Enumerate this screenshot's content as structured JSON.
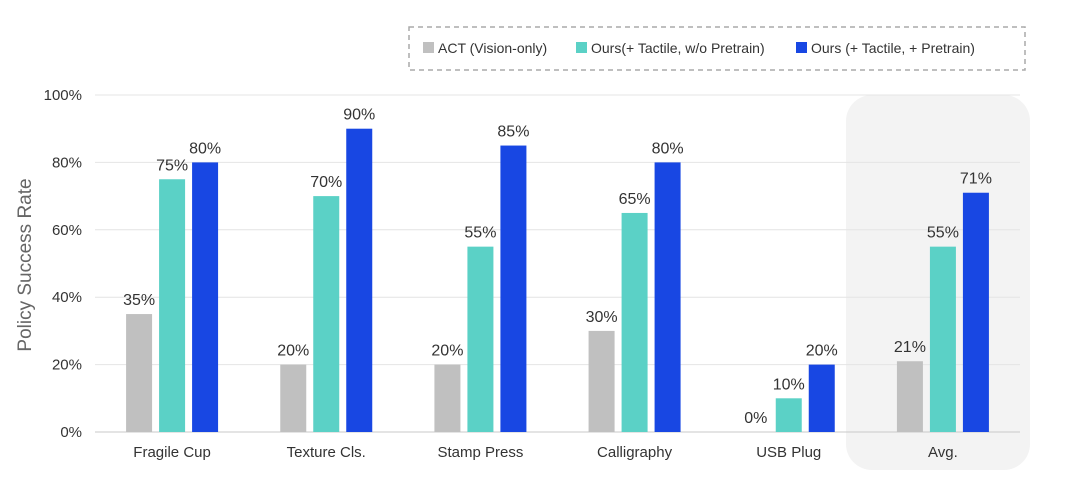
{
  "chart_data": {
    "type": "bar",
    "title": "",
    "xlabel": "",
    "ylabel": "Policy Success Rate",
    "ylim": [
      0,
      100
    ],
    "yticks": [
      "0%",
      "20%",
      "40%",
      "60%",
      "80%",
      "100%"
    ],
    "value_suffix": "%",
    "categories": [
      "Fragile Cup",
      "Texture Cls.",
      "Stamp Press",
      "Calligraphy",
      "USB Plug",
      "Avg."
    ],
    "highlighted_category": "Avg.",
    "grid": true,
    "legend_position": "top-right",
    "series": [
      {
        "name": "ACT (Vision-only)",
        "color": "#c0c0c0",
        "values": [
          35,
          20,
          20,
          30,
          0,
          21
        ]
      },
      {
        "name": "Ours(+ Tactile, w/o Pretrain)",
        "color": "#5bd1c6",
        "values": [
          75,
          70,
          55,
          65,
          10,
          55
        ]
      },
      {
        "name": "Ours (+ Tactile, + Pretrain)",
        "color": "#1847e3",
        "values": [
          80,
          90,
          85,
          80,
          20,
          71
        ]
      }
    ]
  }
}
